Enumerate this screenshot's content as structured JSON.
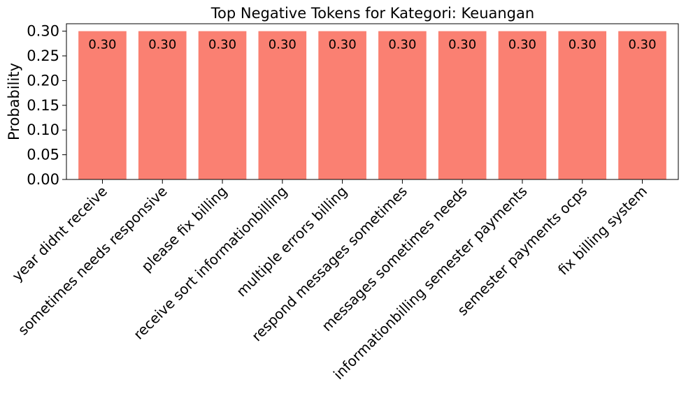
{
  "chart_data": {
    "type": "bar",
    "title": "Top Negative Tokens for Kategori: Keuangan",
    "xlabel": "",
    "ylabel": "Probability",
    "categories": [
      "year didnt receive",
      "sometimes needs responsive",
      "please fix billing",
      "receive sort informationbilling",
      "multiple errors billing",
      "respond messages sometimes",
      "messages sometimes needs",
      "informationbilling semester payments",
      "semester payments ocps",
      "fix billing system"
    ],
    "values": [
      0.3,
      0.3,
      0.3,
      0.3,
      0.3,
      0.3,
      0.3,
      0.3,
      0.3,
      0.3
    ],
    "data_labels": [
      "0.30",
      "0.30",
      "0.30",
      "0.30",
      "0.30",
      "0.30",
      "0.30",
      "0.30",
      "0.30",
      "0.30"
    ],
    "ylim": [
      0,
      0.315
    ],
    "yticks": [
      0.0,
      0.05,
      0.1,
      0.15,
      0.2,
      0.25,
      0.3
    ],
    "ytick_labels": [
      "0.00",
      "0.05",
      "0.10",
      "0.15",
      "0.20",
      "0.25",
      "0.30"
    ],
    "bar_color": "#fa8072",
    "grid": false,
    "legend": "none"
  }
}
